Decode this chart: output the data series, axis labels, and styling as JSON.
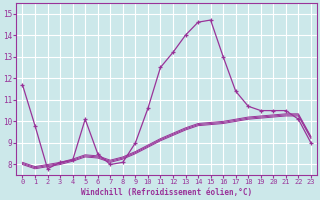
{
  "xlabel": "Windchill (Refroidissement éolien,°C)",
  "background_color": "#cce8ea",
  "grid_color": "#ffffff",
  "line_color": "#993399",
  "xlim": [
    -0.5,
    23.5
  ],
  "ylim": [
    7.5,
    15.5
  ],
  "yticks": [
    8,
    9,
    10,
    11,
    12,
    13,
    14,
    15
  ],
  "xticks": [
    0,
    1,
    2,
    3,
    4,
    5,
    6,
    7,
    8,
    9,
    10,
    11,
    12,
    13,
    14,
    15,
    16,
    17,
    18,
    19,
    20,
    21,
    22,
    23
  ],
  "series": [
    {
      "x": [
        0,
        1,
        2,
        3,
        4,
        5,
        6,
        7,
        8,
        9,
        10,
        11,
        12,
        13,
        14,
        15,
        16,
        17,
        18,
        19,
        20,
        21,
        22,
        23
      ],
      "y": [
        11.7,
        9.8,
        7.8,
        8.1,
        8.2,
        10.1,
        8.5,
        8.0,
        8.1,
        9.0,
        10.6,
        12.5,
        13.2,
        14.0,
        14.6,
        14.7,
        13.0,
        11.4,
        10.7,
        10.5,
        10.5,
        10.5,
        10.1,
        9.0
      ],
      "marker": true
    },
    {
      "x": [
        0,
        1,
        2,
        3,
        4,
        5,
        6,
        7,
        8,
        9,
        10,
        11,
        12,
        13,
        14,
        15,
        16,
        17,
        18,
        19,
        20,
        21,
        22,
        23
      ],
      "y": [
        8.0,
        7.8,
        7.9,
        8.0,
        8.15,
        8.35,
        8.3,
        8.1,
        8.25,
        8.5,
        8.8,
        9.1,
        9.35,
        9.6,
        9.8,
        9.85,
        9.9,
        10.0,
        10.1,
        10.15,
        10.2,
        10.25,
        10.25,
        9.2
      ],
      "marker": false
    },
    {
      "x": [
        0,
        1,
        2,
        3,
        4,
        5,
        6,
        7,
        8,
        9,
        10,
        11,
        12,
        13,
        14,
        15,
        16,
        17,
        18,
        19,
        20,
        21,
        22,
        23
      ],
      "y": [
        8.05,
        7.85,
        7.95,
        8.05,
        8.2,
        8.4,
        8.35,
        8.15,
        8.3,
        8.55,
        8.85,
        9.15,
        9.4,
        9.65,
        9.85,
        9.9,
        9.95,
        10.05,
        10.15,
        10.2,
        10.25,
        10.3,
        10.3,
        9.25
      ],
      "marker": false
    },
    {
      "x": [
        0,
        1,
        2,
        3,
        4,
        5,
        6,
        7,
        8,
        9,
        10,
        11,
        12,
        13,
        14,
        15,
        16,
        17,
        18,
        19,
        20,
        21,
        22,
        23
      ],
      "y": [
        8.1,
        7.9,
        8.0,
        8.1,
        8.25,
        8.45,
        8.4,
        8.2,
        8.35,
        8.6,
        8.9,
        9.2,
        9.45,
        9.7,
        9.9,
        9.95,
        10.0,
        10.1,
        10.2,
        10.25,
        10.3,
        10.35,
        10.35,
        9.3
      ],
      "marker": false
    }
  ]
}
